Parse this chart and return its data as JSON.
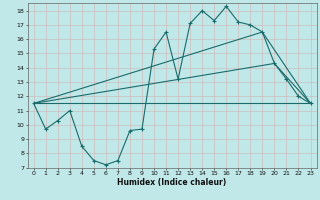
{
  "xlabel": "Humidex (Indice chaleur)",
  "bg_color": "#c0e8e8",
  "grid_color": "#ffffff",
  "line_color": "#1a6b6b",
  "xlim": [
    -0.5,
    23.5
  ],
  "ylim": [
    7,
    18.5
  ],
  "yticks": [
    7,
    8,
    9,
    10,
    11,
    12,
    13,
    14,
    15,
    16,
    17,
    18
  ],
  "xticks": [
    0,
    1,
    2,
    3,
    4,
    5,
    6,
    7,
    8,
    9,
    10,
    11,
    12,
    13,
    14,
    15,
    16,
    17,
    18,
    19,
    20,
    21,
    22,
    23
  ],
  "line_main": {
    "x": [
      0,
      1,
      2,
      3,
      4,
      5,
      6,
      7,
      8,
      9,
      10,
      11,
      12,
      13,
      14,
      15,
      16,
      17,
      18,
      19,
      20,
      21,
      22,
      23
    ],
    "y": [
      11.5,
      9.7,
      10.3,
      11.0,
      8.5,
      7.5,
      7.2,
      7.5,
      9.6,
      9.7,
      15.3,
      16.5,
      13.2,
      17.1,
      18.0,
      17.3,
      18.3,
      17.2,
      17.0,
      16.5,
      14.3,
      13.2,
      12.0,
      11.5
    ]
  },
  "line_flat": {
    "x": [
      0,
      23
    ],
    "y": [
      11.5,
      11.5
    ]
  },
  "line_diag1": {
    "x": [
      0,
      19,
      23
    ],
    "y": [
      11.5,
      16.5,
      11.5
    ]
  },
  "line_diag2": {
    "x": [
      0,
      20,
      23
    ],
    "y": [
      11.5,
      14.3,
      11.5
    ]
  }
}
